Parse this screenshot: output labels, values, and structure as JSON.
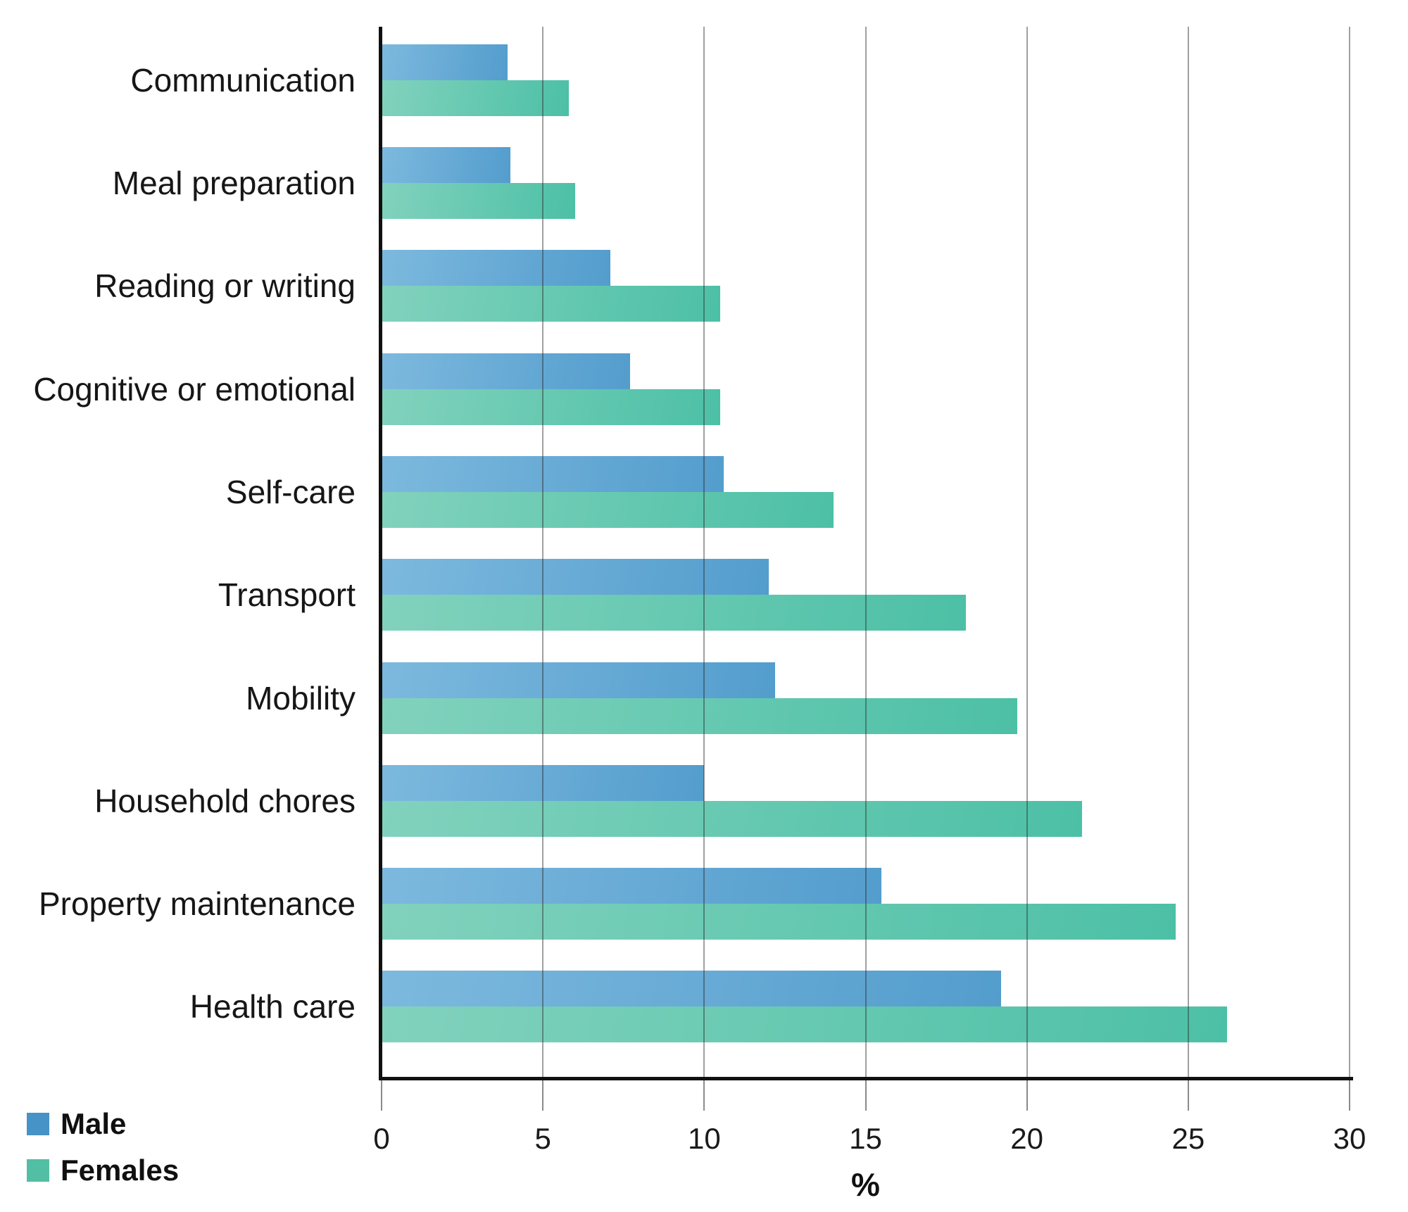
{
  "chart_data": {
    "type": "bar",
    "orientation": "horizontal",
    "title": "",
    "xlabel": "%",
    "ylabel": "",
    "xlim": [
      0,
      30
    ],
    "xticks": [
      0,
      5,
      10,
      15,
      20,
      25,
      30
    ],
    "grid": true,
    "legend_position": "bottom-left",
    "categories": [
      "Communication",
      "Meal preparation",
      "Reading or writing",
      "Cognitive or emotional",
      "Self-care",
      "Transport",
      "Mobility",
      "Household chores",
      "Property maintenance",
      "Health care"
    ],
    "series": [
      {
        "name": "Male",
        "values": [
          3.9,
          4.0,
          7.1,
          7.7,
          10.6,
          12.0,
          12.2,
          10.0,
          15.5,
          19.2
        ],
        "bar_color_start": "#7db9de",
        "bar_color_end": "#539dcd",
        "legend_color": "#4593c7"
      },
      {
        "name": "Females",
        "values": [
          5.8,
          6.0,
          10.5,
          10.5,
          14.0,
          18.1,
          19.7,
          21.7,
          24.6,
          26.2
        ],
        "bar_color_start": "#82d2bd",
        "bar_color_end": "#4cc0a6",
        "legend_color": "#52bfa4"
      }
    ]
  },
  "colors": {
    "axis": "#101010",
    "gridline": "rgba(45,45,45,0.45)",
    "text": "#161616"
  }
}
